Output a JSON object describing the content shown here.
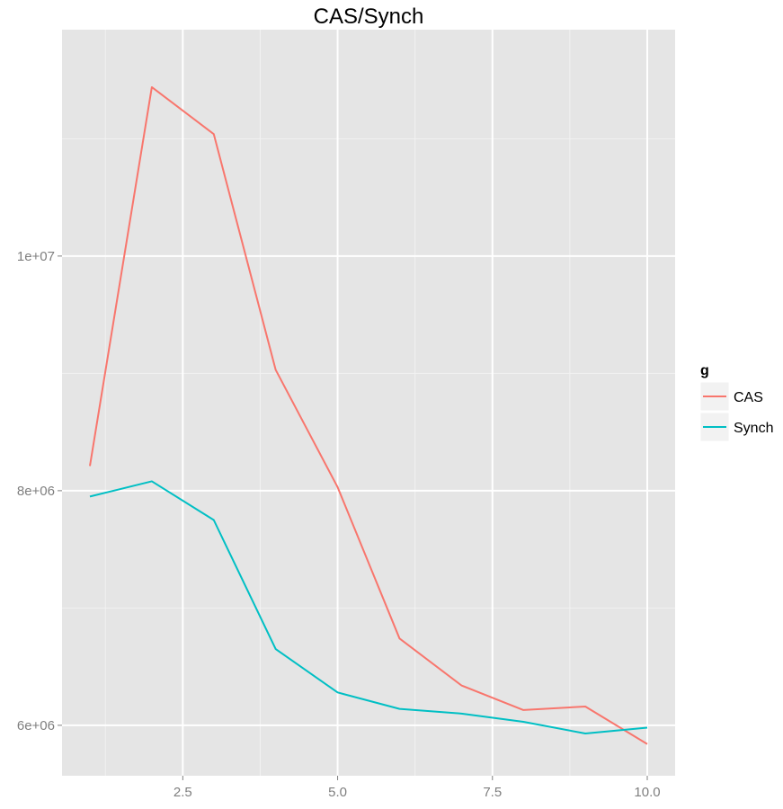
{
  "chart_data": {
    "type": "line",
    "title": "CAS/Synch",
    "xlabel": "",
    "ylabel": "",
    "x": [
      1,
      2,
      3,
      4,
      5,
      6,
      7,
      8,
      9,
      10
    ],
    "xlim": [
      0.55,
      10.45
    ],
    "ylim": [
      5570000,
      11930000
    ],
    "x_ticks": [
      2.5,
      5.0,
      7.5,
      10.0
    ],
    "x_tick_labels": [
      "2.5",
      "5.0",
      "7.5",
      "10.0"
    ],
    "y_ticks": [
      6000000,
      8000000,
      10000000
    ],
    "y_tick_labels": [
      "6e+06",
      "8e+06",
      "1e+07"
    ],
    "grid": true,
    "legend": {
      "title": "g",
      "position": "right",
      "entries": [
        "CAS",
        "Synch"
      ]
    },
    "series": [
      {
        "name": "CAS",
        "color": "#F8766D",
        "values": [
          8210000,
          11440000,
          11040000,
          9030000,
          8030000,
          6740000,
          6340000,
          6130000,
          6160000,
          5840000
        ]
      },
      {
        "name": "Synch",
        "color": "#00BFC4",
        "values": [
          7950000,
          8080000,
          7750000,
          6650000,
          6280000,
          6140000,
          6100000,
          6030000,
          5930000,
          5980000
        ]
      }
    ],
    "panel_background": "#E5E5E5",
    "grid_color": "#FFFFFF"
  }
}
